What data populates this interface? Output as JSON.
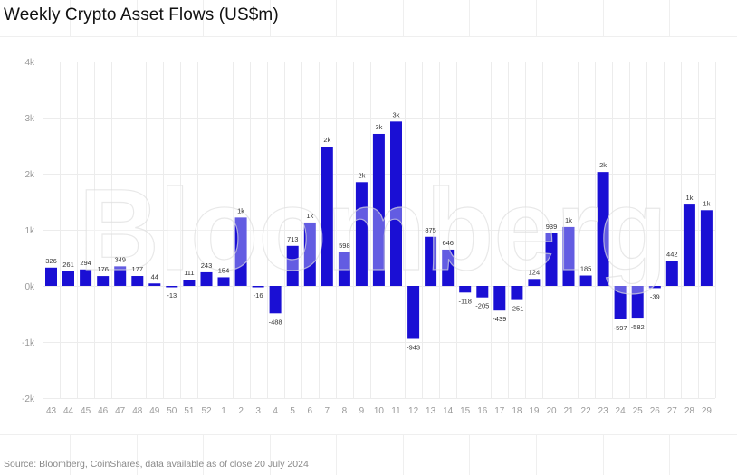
{
  "title": "Weekly Crypto Asset Flows (US$m)",
  "source": "Source: Bloomberg, CoinShares, data available as of close 20 July 2024",
  "watermark": "Bloomberg",
  "colors": {
    "bar": "#1a0fd4",
    "grid": "#ececec",
    "axis_text": "#9a9a9a",
    "value_label": "#333333"
  },
  "chart_data": {
    "type": "bar",
    "title": "Weekly Crypto Asset Flows (US$m)",
    "xlabel": "",
    "ylabel": "",
    "ylim": [
      -2000,
      4000
    ],
    "yticks": [
      4000,
      3000,
      2000,
      1000,
      0,
      -1000,
      -2000
    ],
    "ytick_labels": [
      "4k",
      "3k",
      "2k",
      "1k",
      "0k",
      "-1k",
      "-2k"
    ],
    "grid": true,
    "legend": "none",
    "categories": [
      "43",
      "44",
      "45",
      "46",
      "47",
      "48",
      "49",
      "50",
      "51",
      "52",
      "1",
      "2",
      "3",
      "4",
      "5",
      "6",
      "7",
      "8",
      "9",
      "10",
      "11",
      "12",
      "13",
      "14",
      "15",
      "16",
      "17",
      "18",
      "19",
      "20",
      "21",
      "22",
      "23",
      "24",
      "25",
      "26",
      "27",
      "28",
      "29"
    ],
    "values": [
      326,
      261,
      294,
      176,
      349,
      177,
      44,
      -13,
      111,
      243,
      154,
      1220,
      -16,
      -488,
      713,
      1130,
      2480,
      598,
      1850,
      2710,
      2930,
      -943,
      875,
      646,
      -118,
      -205,
      -439,
      -251,
      124,
      939,
      1050,
      185,
      2030,
      -597,
      -582,
      -39,
      442,
      1450,
      1350
    ],
    "data_labels": [
      "326",
      "261",
      "294",
      "176",
      "349",
      "177",
      "44",
      "-13",
      "111",
      "243",
      "154",
      "1k",
      "-16",
      "-488",
      "713",
      "1k",
      "2k",
      "598",
      "2k",
      "3k",
      "3k",
      "-943",
      "875",
      "646",
      "-118",
      "-205",
      "-439",
      "-251",
      "124",
      "939",
      "1k",
      "185",
      "2k",
      "-597",
      "-582",
      "-39",
      "442",
      "1k",
      "1k"
    ]
  }
}
